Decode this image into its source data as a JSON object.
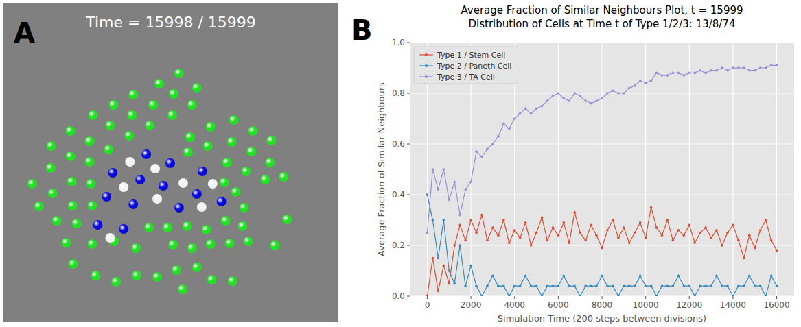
{
  "chart_data": [
    {
      "panel": "A",
      "type": "scatter",
      "title": "Time = 15998 / 15999",
      "xlim": [
        0,
        490
      ],
      "ylim": [
        0,
        465
      ],
      "tick_labels": false,
      "grid": false,
      "marker": "sphere",
      "series": [
        {
          "color": "#22e022",
          "x": [
            257,
            228,
            283,
            190,
            249,
            161,
            219,
            276,
            131,
            188,
            247,
            337,
            156,
            214,
            303,
            365,
            98,
            126,
            184,
            273,
            334,
            392,
            70,
            154,
            299,
            363,
            98,
            126,
            270,
            327,
            390,
            69,
            355,
            42,
            100,
            128,
            383,
            323,
            72,
            340,
            410,
            101,
            130,
            352,
            52,
            78,
            213,
            240,
            269,
            297,
            325,
            415,
            107,
            350,
            92,
            130,
            162,
            194,
            248,
            276,
            303,
            331,
            358,
            397,
            102,
            135,
            165,
            195,
            225,
            253,
            283,
            305,
            335,
            262
          ],
          "values": [
            363,
            348,
            342,
            332,
            333,
            317,
            317,
            317,
            302,
            302,
            302,
            295,
            287,
            287,
            285,
            279,
            279,
            264,
            272,
            270,
            263,
            265,
            257,
            252,
            257,
            249,
            242,
            234,
            248,
            233,
            233,
            225,
            220,
            202,
            205,
            202,
            208,
            204,
            188,
            190,
            212,
            170,
            170,
            167,
            169,
            148,
            138,
            138,
            140,
            135,
            148,
            150,
            144,
            140,
            116,
            114,
            118,
            108,
            113,
            108,
            114,
            115,
            118,
            112,
            85,
            68,
            59,
            68,
            66,
            76,
            80,
            62,
            60,
            48
          ]
        },
        {
          "color": "#0a0ad8",
          "x": [
            209,
            244,
            160,
            291,
            200,
            234,
            283,
            151,
            190,
            319,
            257,
            138,
            176
          ],
          "values": [
            245,
            232,
            218,
            220,
            208,
            199,
            187,
            183,
            172,
            176,
            167,
            142,
            136
          ]
        },
        {
          "color": "#f2f2f2",
          "x": [
            185,
            222,
            176,
            263,
            306,
            290,
            156,
            225
          ],
          "values": [
            234,
            224,
            197,
            203,
            202,
            168,
            123,
            180
          ]
        }
      ]
    },
    {
      "panel": "B",
      "type": "line",
      "title": "Average Fraction of Similar Neighbours Plot, t = 15999",
      "subtitle": "Distribution of Cells at Time t of Type 1/2/3: 13/8/74",
      "x_label": "Simulation Time (200 steps between divisions)",
      "y_label": "Average Fraction of Similar Neighbours",
      "xlim": [
        -800,
        16800
      ],
      "ylim": [
        0,
        1
      ],
      "xticks": [
        0,
        2000,
        4000,
        6000,
        8000,
        10000,
        12000,
        14000,
        16000
      ],
      "yticks": [
        {
          "value": 0,
          "label": "0.0"
        },
        0.2,
        0.4,
        0.6,
        0.8,
        {
          "value": 1,
          "label": "1.0"
        }
      ],
      "grid": true,
      "legend": "upper left",
      "marker": "circle",
      "x": [
        0,
        250,
        500,
        750,
        1000,
        1250,
        1500,
        1750,
        2000,
        2250,
        2500,
        2750,
        3000,
        3250,
        3500,
        3750,
        4000,
        4250,
        4500,
        4750,
        5000,
        5250,
        5500,
        5750,
        6000,
        6250,
        6500,
        6750,
        7000,
        7250,
        7500,
        7750,
        8000,
        8250,
        8500,
        8750,
        9000,
        9250,
        9500,
        9750,
        10000,
        10250,
        10500,
        10750,
        11000,
        11250,
        11500,
        11750,
        12000,
        12250,
        12500,
        12750,
        13000,
        13250,
        13500,
        13750,
        14000,
        14250,
        14500,
        14750,
        15000,
        15250,
        15500,
        15750,
        16000
      ],
      "series": [
        {
          "name": "Type 1 / Stem Cell",
          "color": "#e24a33",
          "values": [
            0.0,
            0.15,
            0.02,
            0.12,
            0.05,
            0.2,
            0.28,
            0.22,
            0.3,
            0.25,
            0.32,
            0.22,
            0.27,
            0.24,
            0.3,
            0.21,
            0.26,
            0.23,
            0.29,
            0.2,
            0.25,
            0.31,
            0.22,
            0.27,
            0.24,
            0.29,
            0.21,
            0.33,
            0.25,
            0.22,
            0.28,
            0.24,
            0.19,
            0.26,
            0.3,
            0.23,
            0.27,
            0.21,
            0.25,
            0.29,
            0.23,
            0.35,
            0.27,
            0.24,
            0.3,
            0.22,
            0.26,
            0.24,
            0.28,
            0.21,
            0.25,
            0.27,
            0.23,
            0.26,
            0.2,
            0.25,
            0.28,
            0.22,
            0.15,
            0.24,
            0.19,
            0.26,
            0.3,
            0.22,
            0.18
          ]
        },
        {
          "name": "Type 2 / Paneth Cell",
          "color": "#348abd",
          "values": [
            0.4,
            0.3,
            0.15,
            0.3,
            0.1,
            0.05,
            0.2,
            0.04,
            0.12,
            0.04,
            0.0,
            0.04,
            0.08,
            0.04,
            0.04,
            0.0,
            0.04,
            0.04,
            0.08,
            0.04,
            0.04,
            0.0,
            0.04,
            0.04,
            0.04,
            0.08,
            0.04,
            0.04,
            0.0,
            0.04,
            0.04,
            0.04,
            0.08,
            0.04,
            0.04,
            0.0,
            0.04,
            0.04,
            0.04,
            0.08,
            0.04,
            0.04,
            0.0,
            0.04,
            0.04,
            0.04,
            0.08,
            0.04,
            0.04,
            0.0,
            0.04,
            0.04,
            0.04,
            0.08,
            0.04,
            0.04,
            0.0,
            0.04,
            0.04,
            0.08,
            0.04,
            0.04,
            0.0,
            0.08,
            0.04
          ]
        },
        {
          "name": "Type 3 / TA Cell",
          "color": "#988ed5",
          "values": [
            0.25,
            0.5,
            0.42,
            0.5,
            0.38,
            0.45,
            0.32,
            0.42,
            0.45,
            0.57,
            0.55,
            0.58,
            0.6,
            0.63,
            0.68,
            0.66,
            0.7,
            0.72,
            0.74,
            0.72,
            0.74,
            0.75,
            0.77,
            0.79,
            0.8,
            0.78,
            0.77,
            0.8,
            0.79,
            0.77,
            0.76,
            0.77,
            0.78,
            0.8,
            0.81,
            0.8,
            0.8,
            0.82,
            0.83,
            0.85,
            0.84,
            0.85,
            0.88,
            0.87,
            0.87,
            0.88,
            0.88,
            0.87,
            0.88,
            0.88,
            0.89,
            0.88,
            0.89,
            0.89,
            0.9,
            0.89,
            0.9,
            0.9,
            0.9,
            0.89,
            0.89,
            0.9,
            0.9,
            0.91,
            0.91
          ]
        }
      ]
    }
  ]
}
